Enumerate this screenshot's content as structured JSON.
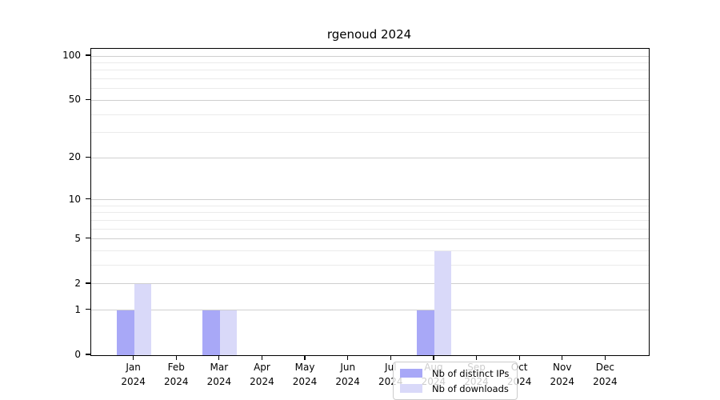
{
  "chart_data": {
    "type": "bar",
    "title": "rgenoud 2024",
    "categories": [
      "Jan",
      "Feb",
      "Mar",
      "Apr",
      "May",
      "Jun",
      "Jul",
      "Aug",
      "Sep",
      "Oct",
      "Nov",
      "Dec"
    ],
    "category_year": "2024",
    "series": [
      {
        "name": "Nb of distinct IPs",
        "color": "#a8a8f7",
        "values": [
          1,
          0,
          1,
          0,
          0,
          0,
          0,
          1,
          0,
          0,
          0,
          0
        ]
      },
      {
        "name": "Nb of downloads",
        "color": "#d9d9f9",
        "values": [
          2,
          0,
          1,
          0,
          0,
          0,
          0,
          4,
          0,
          0,
          0,
          0
        ]
      }
    ],
    "yscale": "log1p",
    "ylim": [
      0,
      112
    ],
    "yticks": [
      0,
      1,
      2,
      5,
      10,
      20,
      50,
      100
    ],
    "yticks_minor": [
      3,
      4,
      6,
      7,
      8,
      9,
      30,
      40,
      60,
      70,
      80,
      90
    ],
    "grid": "horizontal",
    "legend_position": "lower-center-inside",
    "colors": {
      "major_grid": "#cfcfcf",
      "minor_grid": "#ebebeb",
      "axis": "#000000",
      "background": "#ffffff"
    }
  }
}
